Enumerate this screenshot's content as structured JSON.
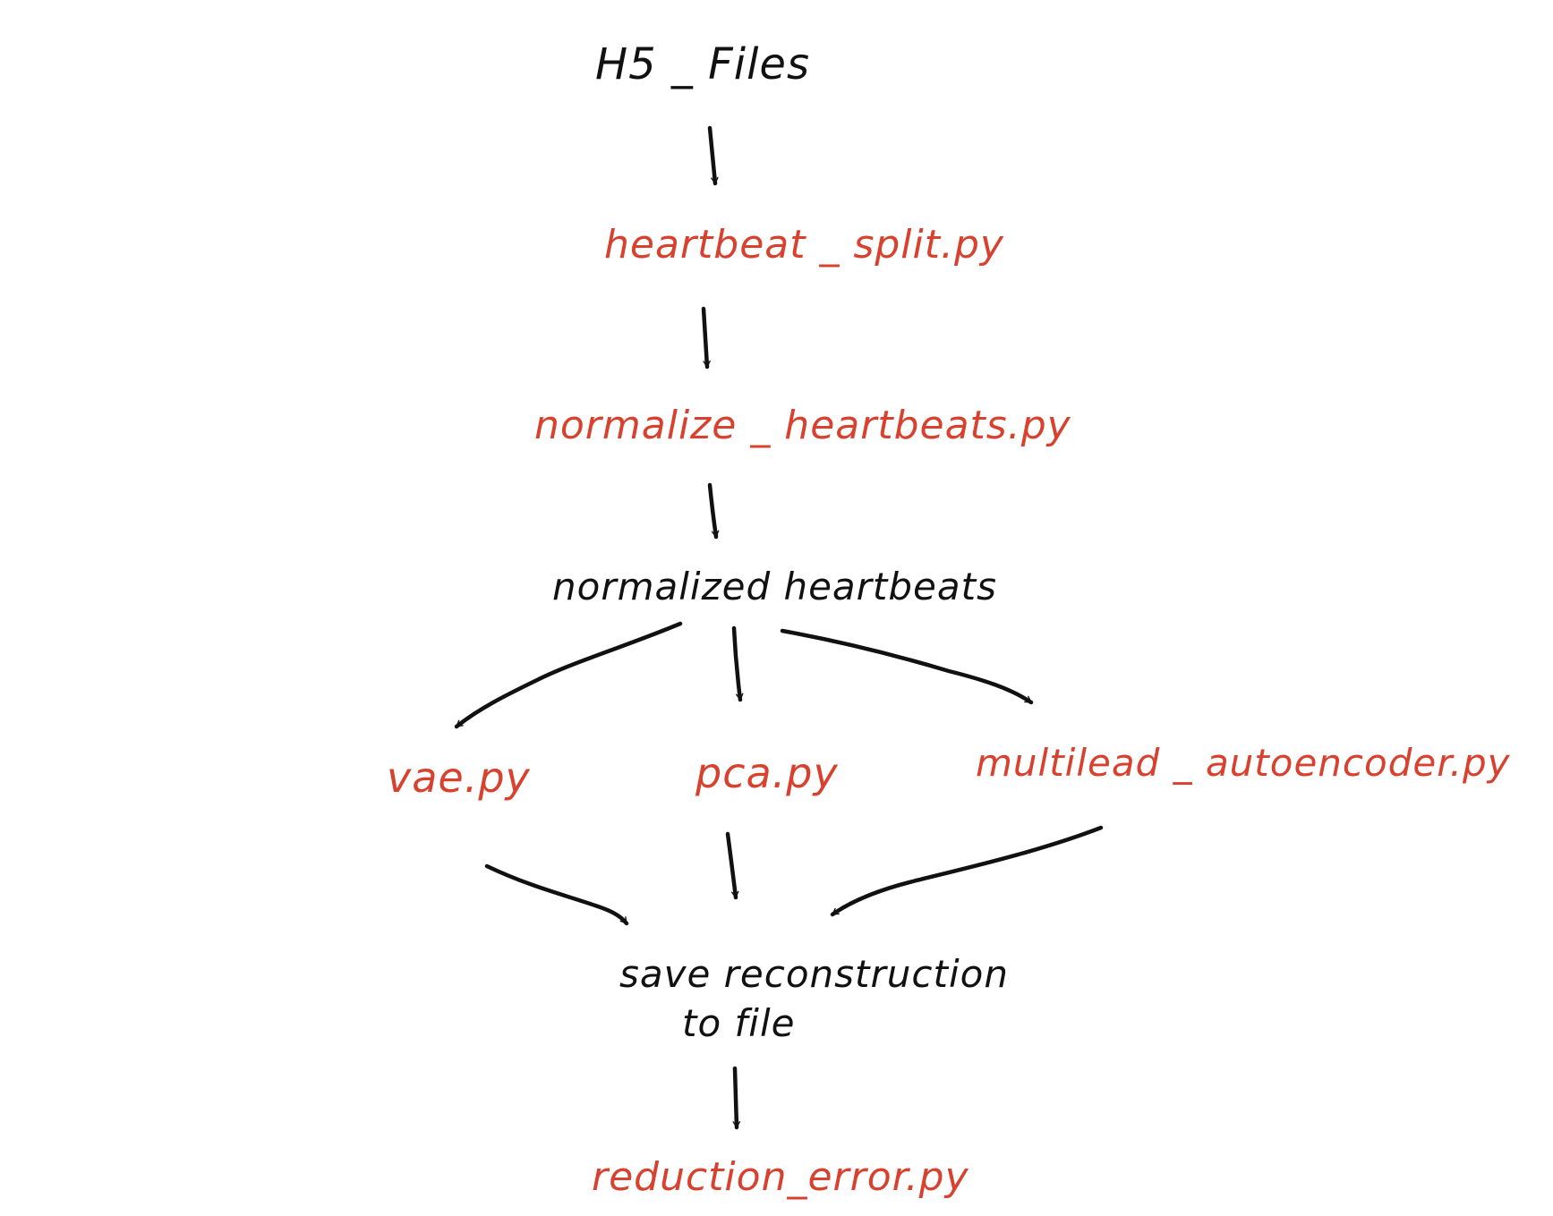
{
  "colors": {
    "ink": "#111111",
    "script": "#d9412f",
    "background": "#ffffff"
  },
  "nodes": {
    "hs_files": "H5 _ Files",
    "heartbeat_split": "heartbeat _ split.py",
    "normalize_heartbeats": "normalize _ heartbeats.py",
    "normalized_heartbeats": "normalized heartbeats",
    "vae": "vae.py",
    "pca": "pca.py",
    "multilead_autoencoder": "multilead _ autoencoder.py",
    "save_reconstruction_line1": "save reconstruction",
    "save_reconstruction_line2": "to file",
    "reduction_error": "reduction_error.py"
  }
}
